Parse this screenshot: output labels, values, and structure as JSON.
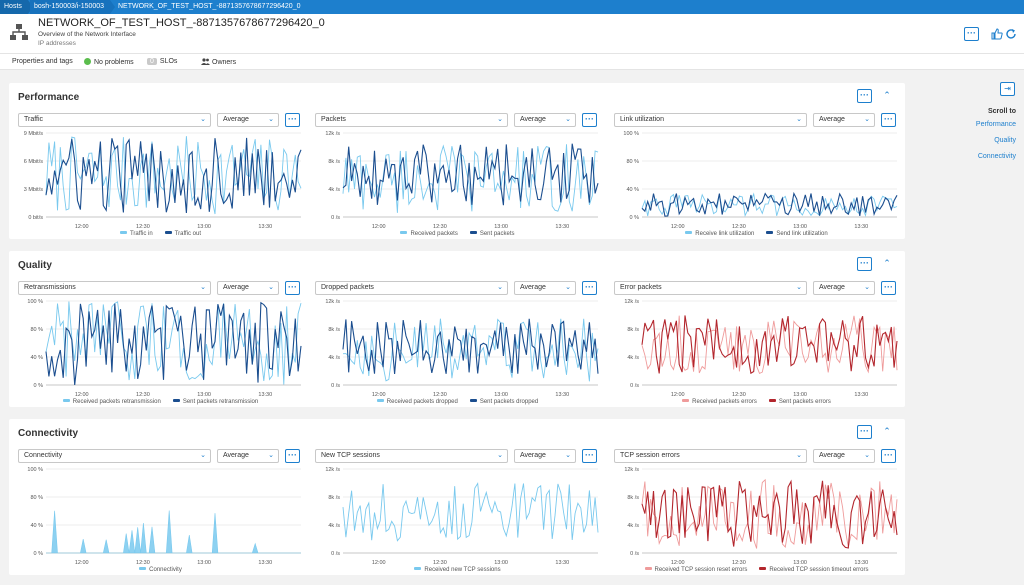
{
  "breadcrumb": [
    "Hosts",
    "bosh-150003/i-150003",
    "NETWORK_OF_TEST_HOST_-8871357678677296420_0"
  ],
  "header": {
    "title": "NETWORK_OF_TEST_HOST_-8871357678677296420_0",
    "subtitle": "Overview of the Network Interface",
    "detail": "IP addresses",
    "menu_label": "···"
  },
  "tagbar": {
    "properties": "Properties and tags",
    "problems": "No problems",
    "slo_count": "0",
    "slos": "SLOs",
    "owners": "Owners"
  },
  "colors": {
    "accent": "#1d7fcd",
    "light_blue": "#79c9ee",
    "dark_blue": "#1b4e8f",
    "light_red": "#ef9b9b",
    "dark_red": "#b3262d",
    "ok_green": "#5bbd4d"
  },
  "sections": [
    {
      "title": "Performance",
      "tiles": [
        {
          "metric": "Traffic",
          "aggregation": "Average"
        },
        {
          "metric": "Packets",
          "aggregation": "Average"
        },
        {
          "metric": "Link utilization",
          "aggregation": "Average"
        }
      ]
    },
    {
      "title": "Quality",
      "tiles": [
        {
          "metric": "Retransmissions",
          "aggregation": "Average"
        },
        {
          "metric": "Dropped packets",
          "aggregation": "Average"
        },
        {
          "metric": "Error packets",
          "aggregation": "Average"
        }
      ]
    },
    {
      "title": "Connectivity",
      "tiles": [
        {
          "metric": "Connectivity",
          "aggregation": "Average"
        },
        {
          "metric": "New TCP sessions",
          "aggregation": "Average"
        },
        {
          "metric": "TCP session errors",
          "aggregation": "Average"
        }
      ]
    }
  ],
  "right_panel": {
    "title": "Scroll to",
    "links": [
      "Performance",
      "Quality",
      "Connectivity"
    ]
  },
  "chart_data": [
    {
      "type": "line",
      "x": [
        "12:00",
        "12:30",
        "13:00",
        "13:30"
      ],
      "yticks": [
        "9 Mbit/s",
        "6 Mbit/s",
        "3 Mbit/s",
        "0 bit/s"
      ],
      "ylim": [
        0,
        9
      ],
      "series": [
        {
          "name": "Traffic in",
          "color": "#79c9ee",
          "range": [
            0.3,
            8.7
          ]
        },
        {
          "name": "Traffic out",
          "color": "#1b4e8f",
          "range": [
            0.3,
            8.7
          ]
        }
      ]
    },
    {
      "type": "line",
      "x": [
        "12:00",
        "12:30",
        "13:00",
        "13:30"
      ],
      "yticks": [
        "12k /s",
        "8k /s",
        "4k /s",
        "0 /s"
      ],
      "ylim": [
        0,
        12000
      ],
      "series": [
        {
          "name": "Received packets",
          "color": "#79c9ee",
          "range": [
            400,
            10500
          ]
        },
        {
          "name": "Sent packets",
          "color": "#1b4e8f",
          "range": [
            1500,
            10500
          ]
        }
      ]
    },
    {
      "type": "line",
      "x": [
        "12:00",
        "12:30",
        "13:00",
        "13:30"
      ],
      "yticks": [
        "100 %",
        "80 %",
        "40 %",
        "0 %"
      ],
      "ylim": [
        0,
        100
      ],
      "series": [
        {
          "name": "Receive link utilization",
          "color": "#79c9ee",
          "range": [
            1,
            28
          ]
        },
        {
          "name": "Send link utilization",
          "color": "#1b4e8f",
          "range": [
            1,
            28
          ]
        }
      ]
    },
    {
      "type": "line",
      "x": [
        "12:00",
        "12:30",
        "13:00",
        "13:30"
      ],
      "yticks": [
        "100 %",
        "80 %",
        "40 %",
        "0 %"
      ],
      "ylim": [
        0,
        100
      ],
      "series": [
        {
          "name": "Received packets retransmission",
          "color": "#79c9ee",
          "range": [
            0,
            100
          ]
        },
        {
          "name": "Sent packets retransmission",
          "color": "#1b4e8f",
          "range": [
            0,
            100
          ]
        }
      ]
    },
    {
      "type": "line",
      "x": [
        "12:00",
        "12:30",
        "13:00",
        "13:30"
      ],
      "yticks": [
        "12k /s",
        "8k /s",
        "4k /s",
        "0 /s"
      ],
      "ylim": [
        0,
        12000
      ],
      "series": [
        {
          "name": "Received packets dropped",
          "color": "#79c9ee",
          "range": [
            500,
            9500
          ]
        },
        {
          "name": "Sent packets dropped",
          "color": "#1b4e8f",
          "range": [
            1500,
            9500
          ]
        }
      ]
    },
    {
      "type": "line",
      "x": [
        "12:00",
        "12:30",
        "13:00",
        "13:30"
      ],
      "yticks": [
        "12k /s",
        "8k /s",
        "4k /s",
        "0 /s"
      ],
      "ylim": [
        0,
        12000
      ],
      "series": [
        {
          "name": "Received packets errors",
          "color": "#ef9b9b",
          "range": [
            1500,
            10000
          ]
        },
        {
          "name": "Sent packets errors",
          "color": "#b3262d",
          "range": [
            1500,
            10000
          ]
        }
      ]
    },
    {
      "type": "area",
      "x": [
        "12:00",
        "12:30",
        "13:00",
        "13:30"
      ],
      "yticks": [
        "100 %",
        "80 %",
        "40 %",
        "0 %"
      ],
      "ylim": [
        0,
        100
      ],
      "series": [
        {
          "name": "Connectivity",
          "color": "#79c9ee",
          "range": [
            0,
            55
          ]
        }
      ]
    },
    {
      "type": "line",
      "x": [
        "12:00",
        "12:30",
        "13:00",
        "13:30"
      ],
      "yticks": [
        "12k /s",
        "8k /s",
        "4k /s",
        "0 /s"
      ],
      "ylim": [
        0,
        12000
      ],
      "series": [
        {
          "name": "Received new TCP sessions",
          "color": "#79c9ee",
          "range": [
            1500,
            10000
          ]
        }
      ]
    },
    {
      "type": "line",
      "x": [
        "12:00",
        "12:30",
        "13:00",
        "13:30"
      ],
      "yticks": [
        "12k /s",
        "8k /s",
        "4k /s",
        "0 /s"
      ],
      "ylim": [
        0,
        12000
      ],
      "series": [
        {
          "name": "Received TCP session reset errors",
          "color": "#ef9b9b",
          "range": [
            500,
            10500
          ]
        },
        {
          "name": "Received TCP session timeout errors",
          "color": "#b3262d",
          "range": [
            500,
            10500
          ]
        }
      ]
    }
  ]
}
